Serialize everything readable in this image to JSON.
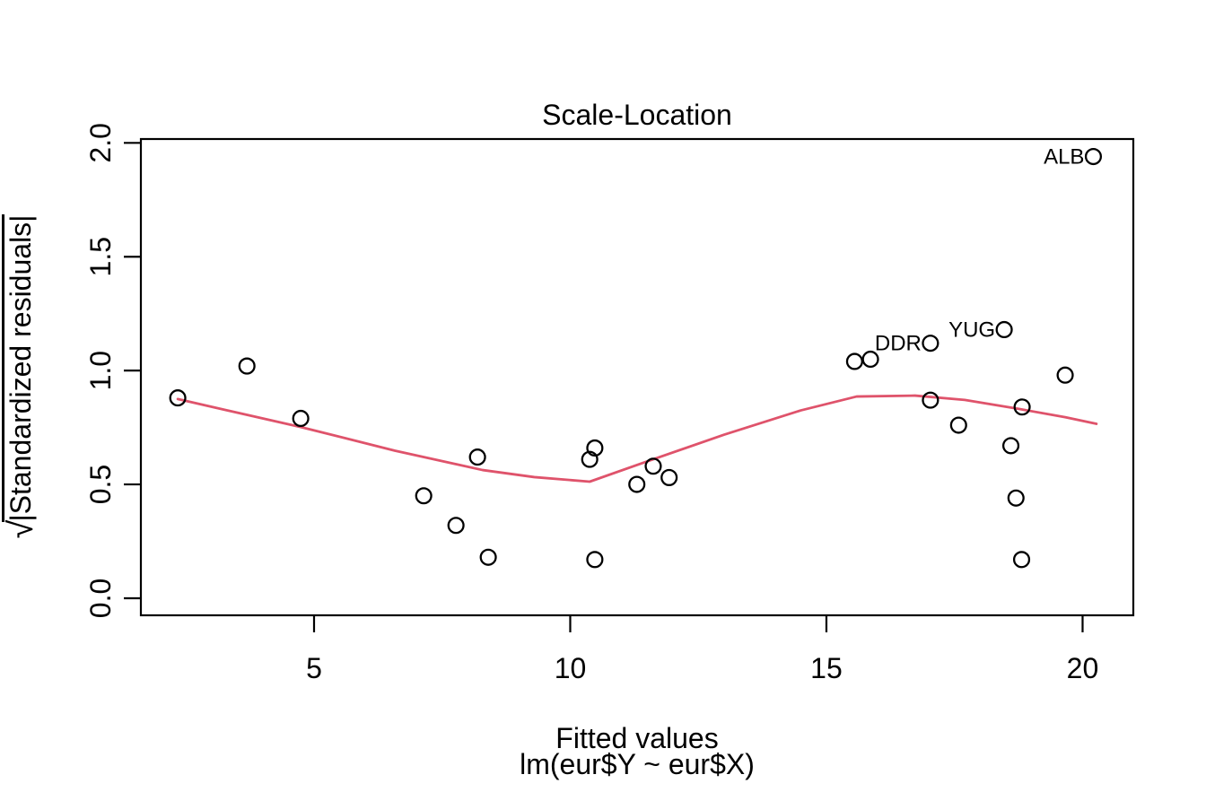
{
  "figure": {
    "title": "Scale-Location",
    "x_axis_label": "Fitted values",
    "model_label": "lm(eur$Y ~ eur$X)",
    "y_axis_sqrt": "√",
    "y_axis_overline": "|Standardized residuals|"
  },
  "chart_data": {
    "type": "scatter",
    "title": "Scale-Location",
    "xlabel": "Fitted values",
    "xlabel_sub": "lm(eur$Y ~ eur$X)",
    "ylabel": "√|Standardized residuals|",
    "xlim": [
      1.62,
      20.99
    ],
    "ylim": [
      -0.075,
      2.017
    ],
    "grid": false,
    "legend": null,
    "x_ticks": [
      {
        "value": 5,
        "label": "5"
      },
      {
        "value": 10,
        "label": "10"
      },
      {
        "value": 15,
        "label": "15"
      },
      {
        "value": 20,
        "label": "20"
      }
    ],
    "y_ticks": [
      {
        "value": 0,
        "label": "0.0"
      },
      {
        "value": 0.5,
        "label": "0.5"
      },
      {
        "value": 1,
        "label": "1.0"
      },
      {
        "value": 1.5,
        "label": "1.5"
      },
      {
        "value": 2,
        "label": "2.0"
      }
    ],
    "points": [
      {
        "x": 2.34,
        "y": 0.88
      },
      {
        "x": 3.69,
        "y": 1.02
      },
      {
        "x": 4.74,
        "y": 0.79
      },
      {
        "x": 7.14,
        "y": 0.45
      },
      {
        "x": 7.77,
        "y": 0.32
      },
      {
        "x": 8.19,
        "y": 0.62
      },
      {
        "x": 8.4,
        "y": 0.18
      },
      {
        "x": 10.38,
        "y": 0.61
      },
      {
        "x": 10.48,
        "y": 0.66
      },
      {
        "x": 10.48,
        "y": 0.17
      },
      {
        "x": 11.3,
        "y": 0.5
      },
      {
        "x": 11.62,
        "y": 0.58
      },
      {
        "x": 11.93,
        "y": 0.53
      },
      {
        "x": 15.55,
        "y": 1.04
      },
      {
        "x": 15.86,
        "y": 1.05
      },
      {
        "x": 17.03,
        "y": 1.12,
        "label": "DDR"
      },
      {
        "x": 17.03,
        "y": 0.87
      },
      {
        "x": 17.58,
        "y": 0.76
      },
      {
        "x": 18.47,
        "y": 1.18,
        "label": "YUG"
      },
      {
        "x": 18.6,
        "y": 0.67
      },
      {
        "x": 18.7,
        "y": 0.44
      },
      {
        "x": 18.81,
        "y": 0.17
      },
      {
        "x": 18.82,
        "y": 0.84
      },
      {
        "x": 19.66,
        "y": 0.98
      },
      {
        "x": 20.21,
        "y": 1.94,
        "label": "ALB"
      }
    ],
    "smooth_line": {
      "color": "#DF536B",
      "vertices": [
        [
          2.34,
          0.875
        ],
        [
          3.7,
          0.805
        ],
        [
          4.74,
          0.752
        ],
        [
          6.58,
          0.648
        ],
        [
          8.29,
          0.563
        ],
        [
          9.3,
          0.532
        ],
        [
          10.38,
          0.512
        ],
        [
          11.5,
          0.601
        ],
        [
          13.0,
          0.718
        ],
        [
          14.5,
          0.825
        ],
        [
          15.59,
          0.886
        ],
        [
          16.73,
          0.89
        ],
        [
          17.7,
          0.871
        ],
        [
          18.77,
          0.831
        ],
        [
          19.66,
          0.795
        ],
        [
          20.27,
          0.766
        ]
      ]
    },
    "colors": {
      "points": "#000000",
      "smooth_line": "#DF536B",
      "axis": "#000000",
      "background": "#FFFFFF"
    }
  }
}
